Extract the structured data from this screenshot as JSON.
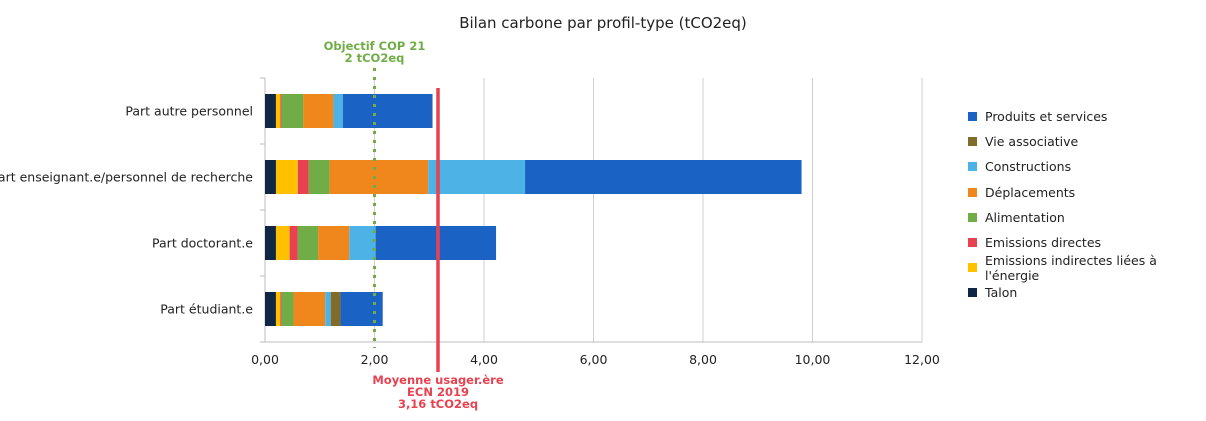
{
  "chart_data": {
    "type": "bar",
    "orientation": "horizontal",
    "stacked": true,
    "title": "Bilan carbone par profil-type (tCO2eq)",
    "xlim": [
      0,
      12
    ],
    "x_ticks": [
      "0,00",
      "2,00",
      "4,00",
      "6,00",
      "8,00",
      "10,00",
      "12,00"
    ],
    "grid": true,
    "legend_position": "right",
    "categories": [
      "Part autre personnel",
      "Part enseignant.e/personnel de recherche",
      "Part doctorant.e",
      "Part étudiant.e"
    ],
    "series": [
      {
        "name": "Talon",
        "color": "#0f2744",
        "values": [
          0.2,
          0.2,
          0.2,
          0.2
        ]
      },
      {
        "name": "Emissions indirectes liées à l'énergie",
        "color": "#ffc000",
        "values": [
          0.08,
          0.4,
          0.25,
          0.08
        ]
      },
      {
        "name": "Emissions directes",
        "color": "#e8414f",
        "values": [
          0.02,
          0.2,
          0.15,
          0.02
        ]
      },
      {
        "name": "Alimentation",
        "color": "#70ad47",
        "values": [
          0.4,
          0.38,
          0.37,
          0.22
        ]
      },
      {
        "name": "Déplacements",
        "color": "#f0871d",
        "values": [
          0.55,
          1.8,
          0.57,
          0.58
        ]
      },
      {
        "name": "Constructions",
        "color": "#4db3e6",
        "values": [
          0.17,
          1.77,
          0.48,
          0.1
        ]
      },
      {
        "name": "Vie associative",
        "color": "#806b2a",
        "values": [
          0.0,
          0.0,
          0.0,
          0.18
        ]
      },
      {
        "name": "Produits et services",
        "color": "#1a63c4",
        "values": [
          1.64,
          5.05,
          2.2,
          0.77
        ]
      }
    ],
    "legend_order": [
      "Produits et services",
      "Vie associative",
      "Constructions",
      "Déplacements",
      "Alimentation",
      "Emissions directes",
      "Emissions indirectes liées à l'énergie",
      "Talon"
    ],
    "reference_lines": [
      {
        "value": 2.0,
        "color": "#70ad47",
        "style": "dotted",
        "label": [
          "Objectif COP 21",
          "2 tCO2eq"
        ],
        "label_position": "top"
      },
      {
        "value": 3.16,
        "color": "#e8414f",
        "style": "solid",
        "label": [
          "Moyenne usager.ère",
          "ECN 2019",
          "3,16 tCO2eq"
        ],
        "label_position": "bottom"
      }
    ]
  }
}
